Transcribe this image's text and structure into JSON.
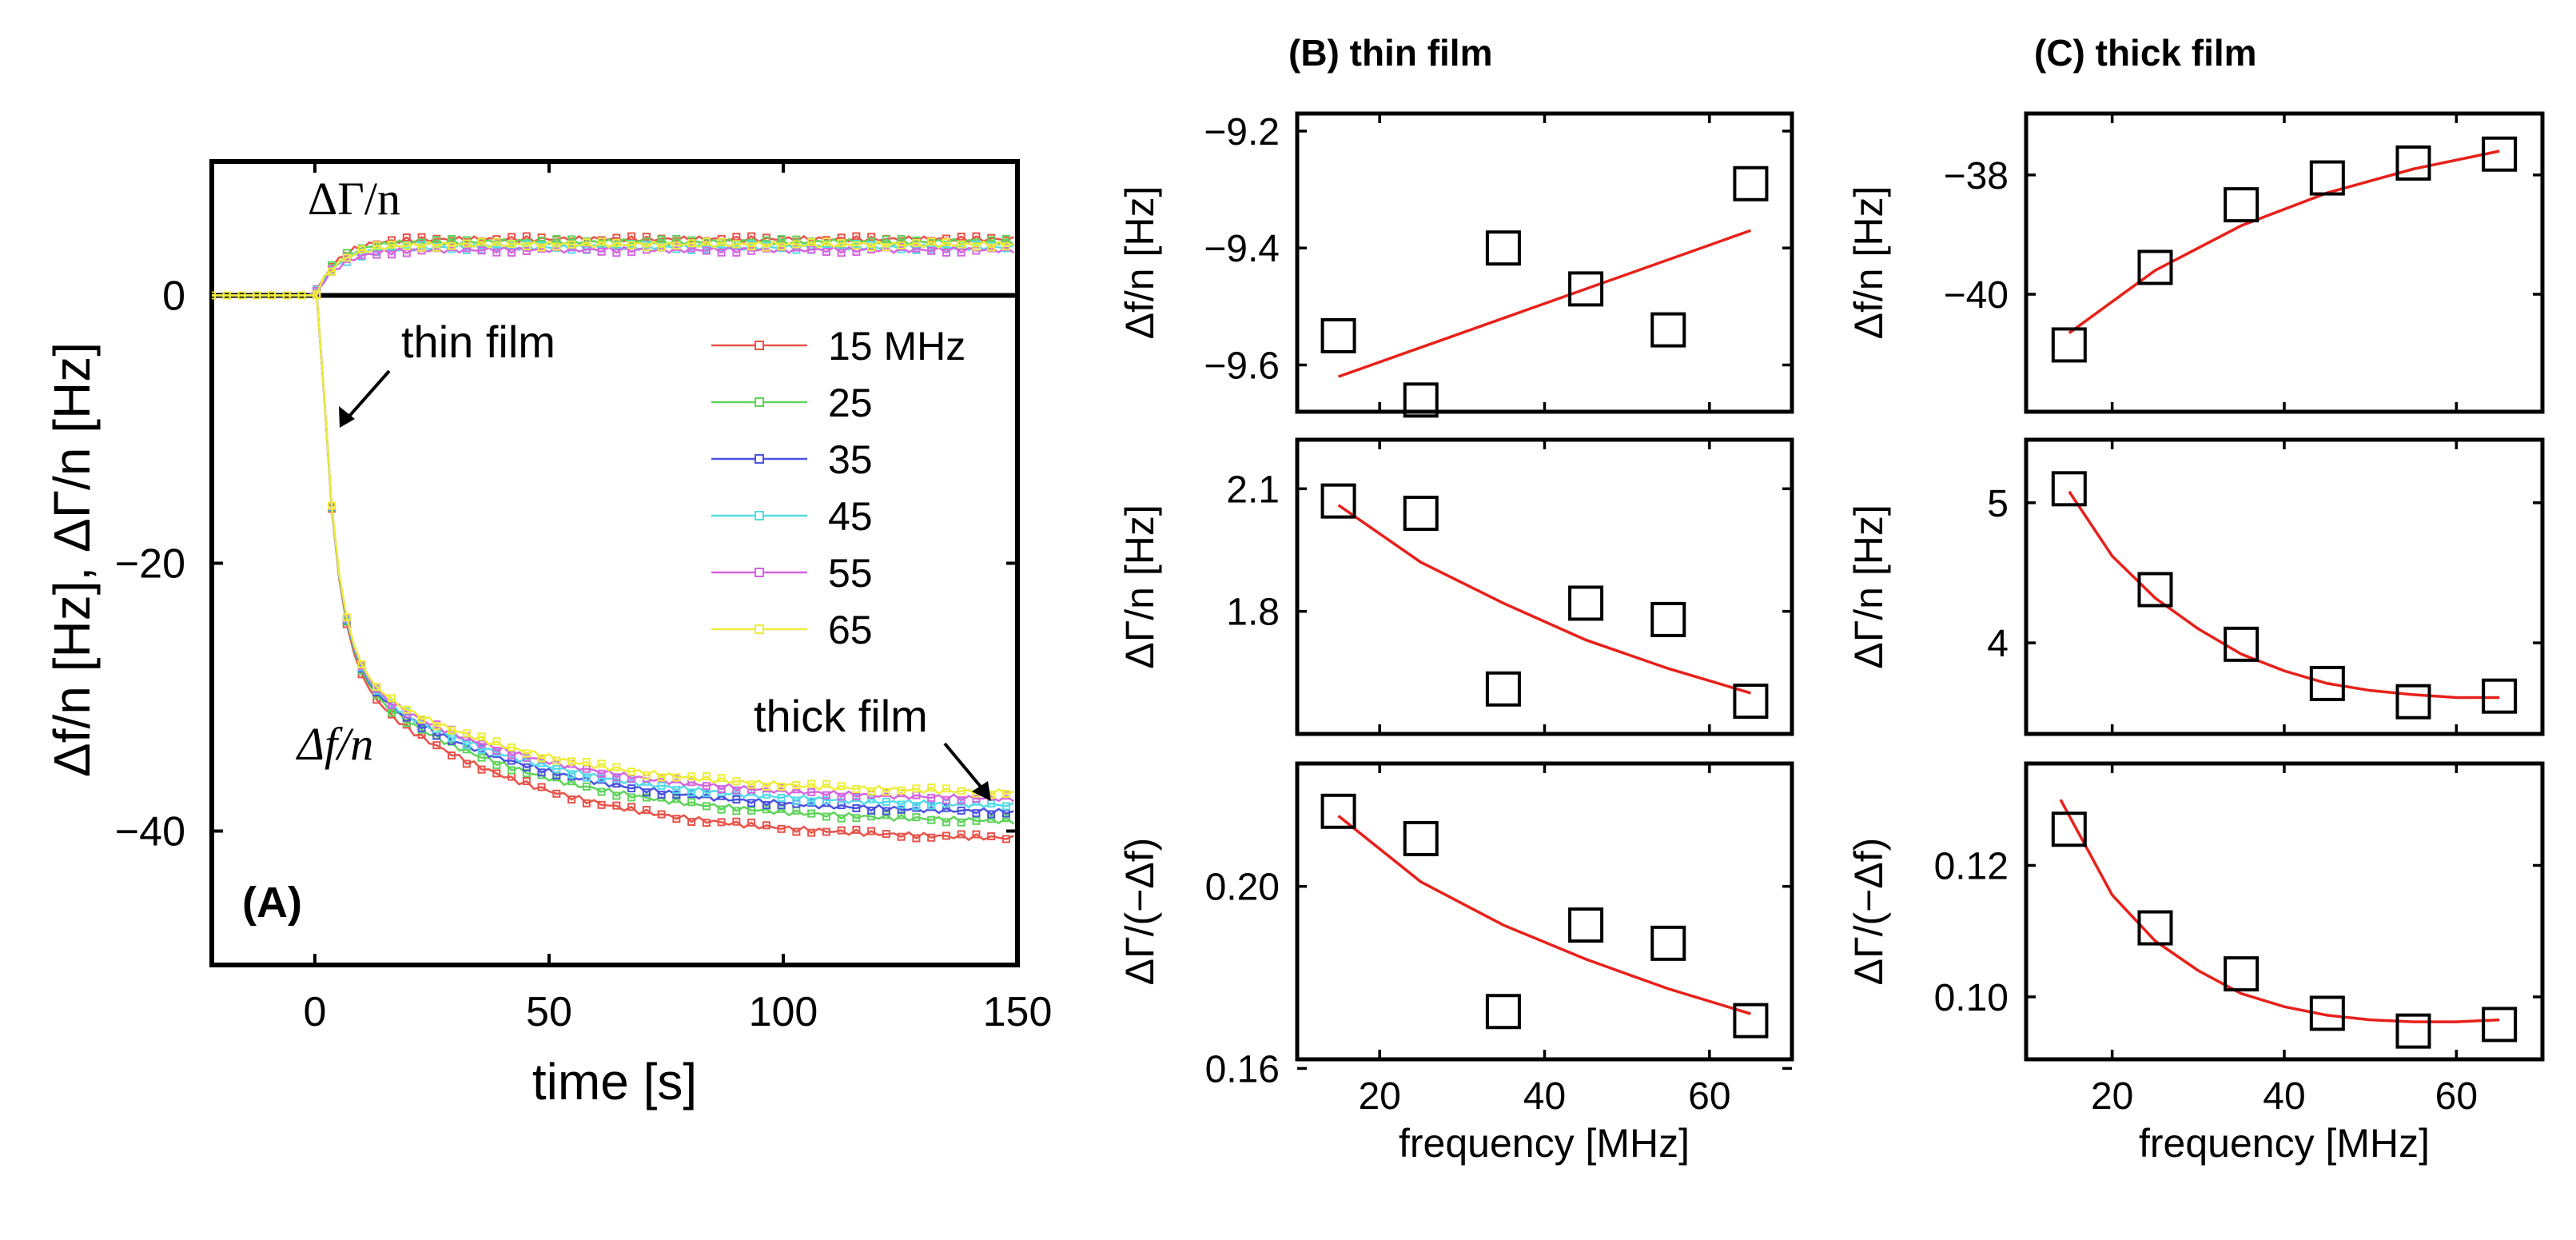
{
  "chart_data": [
    {
      "id": "A",
      "type": "line",
      "panel_label": "(A)",
      "xlabel": "time [s]",
      "ylabel": "Δf/n [Hz], ΔΓ/n [Hz]",
      "xlim": [
        -22,
        150
      ],
      "ylim": [
        -50,
        10
      ],
      "xticks": [
        0,
        50,
        100,
        150
      ],
      "yticks": [
        0,
        -20,
        -40
      ],
      "annotations": {
        "dgamma": "ΔΓ/n",
        "df": "Δf/n",
        "thin": "thin film",
        "thick": "thick film"
      },
      "legend": [
        "15 MHz",
        "25",
        "35",
        "45",
        "55",
        "65"
      ],
      "colors": [
        "#e8534a",
        "#5fd35a",
        "#4a52e0",
        "#54dbe8",
        "#d466e0",
        "#eded3a"
      ],
      "drop_start_s": 0,
      "dgamma_final": [
        4.2,
        4.0,
        3.8,
        3.6,
        3.4,
        3.8
      ],
      "df_final": [
        -40.8,
        -39.5,
        -38.8,
        -38.3,
        -37.8,
        -37.3
      ]
    },
    {
      "id": "B",
      "title": "(B) thin film",
      "type": "scatter",
      "xlabel": "frequency [MHz]",
      "x": [
        15,
        25,
        35,
        45,
        55,
        65
      ],
      "panels": [
        {
          "ylabel": "Δf/n [Hz]",
          "ylim": [
            -9.68,
            -9.17
          ],
          "yticks": [
            -9.2,
            -9.4,
            -9.6
          ],
          "ytick_labels": [
            "−9.2",
            "−9.4",
            "−9.6"
          ],
          "values": [
            -9.55,
            -9.66,
            -9.4,
            -9.47,
            -9.54,
            -9.29
          ],
          "fit": [
            [
              15,
              -9.62
            ],
            [
              65,
              -9.37
            ]
          ]
        },
        {
          "ylabel": "ΔΓ/n [Hz]",
          "ylim": [
            1.5,
            2.22
          ],
          "yticks": [
            2.1,
            1.8
          ],
          "ytick_labels": [
            "2.1",
            "1.8"
          ],
          "values": [
            2.07,
            2.04,
            1.61,
            1.82,
            1.78,
            1.58
          ],
          "fit": [
            [
              15,
              2.06
            ],
            [
              25,
              1.92
            ],
            [
              35,
              1.82
            ],
            [
              45,
              1.73
            ],
            [
              55,
              1.66
            ],
            [
              65,
              1.6
            ]
          ]
        },
        {
          "ylabel": "ΔΓ/(−Δf)",
          "ylim": [
            0.162,
            0.227
          ],
          "yticks": [
            0.2,
            0.16
          ],
          "ytick_labels": [
            "0.20",
            "0.16"
          ],
          "values": [
            0.2165,
            0.2105,
            0.1725,
            0.1915,
            0.1875,
            0.1705
          ],
          "fit": [
            [
              15,
              0.2155
            ],
            [
              25,
              0.201
            ],
            [
              35,
              0.1915
            ],
            [
              45,
              0.184
            ],
            [
              55,
              0.1775
            ],
            [
              65,
              0.172
            ]
          ]
        }
      ],
      "xlim": [
        10,
        70
      ],
      "xticks": [
        20,
        40,
        60
      ]
    },
    {
      "id": "C",
      "title": "(C) thick film",
      "type": "scatter",
      "xlabel": "frequency [MHz]",
      "x": [
        15,
        25,
        35,
        45,
        55,
        65
      ],
      "panels": [
        {
          "ylabel": "Δf/n [Hz]",
          "ylim": [
            -41.97,
            -36.97
          ],
          "yticks": [
            -38,
            -40
          ],
          "ytick_labels": [
            "−38",
            "−40"
          ],
          "values": [
            -40.85,
            -39.55,
            -38.5,
            -38.05,
            -37.8,
            -37.65
          ],
          "fit": [
            [
              15,
              -40.65
            ],
            [
              25,
              -39.6
            ],
            [
              35,
              -38.85
            ],
            [
              45,
              -38.3
            ],
            [
              55,
              -37.9
            ],
            [
              65,
              -37.6
            ]
          ]
        },
        {
          "ylabel": "ΔΓ/n [Hz]",
          "ylim": [
            3.35,
            5.45
          ],
          "yticks": [
            5,
            4
          ],
          "ytick_labels": [
            "5",
            "4"
          ],
          "values": [
            5.1,
            4.38,
            3.99,
            3.71,
            3.58,
            3.62
          ],
          "fit": [
            [
              15,
              5.08
            ],
            [
              20,
              4.62
            ],
            [
              25,
              4.32
            ],
            [
              30,
              4.1
            ],
            [
              35,
              3.92
            ],
            [
              40,
              3.8
            ],
            [
              45,
              3.71
            ],
            [
              50,
              3.66
            ],
            [
              55,
              3.63
            ],
            [
              60,
              3.61
            ],
            [
              65,
              3.61
            ]
          ]
        },
        {
          "ylabel": "ΔΓ/(−Δf)",
          "ylim": [
            0.0905,
            0.1355
          ],
          "yticks": [
            0.12,
            0.1
          ],
          "ytick_labels": [
            "0.12",
            "0.10"
          ],
          "values": [
            0.1255,
            0.1105,
            0.1035,
            0.0975,
            0.0948,
            0.0958
          ],
          "fit": [
            [
              14,
              0.13
            ],
            [
              20,
              0.1155
            ],
            [
              25,
              0.1085
            ],
            [
              30,
              0.104
            ],
            [
              35,
              0.1005
            ],
            [
              40,
              0.0985
            ],
            [
              45,
              0.0972
            ],
            [
              50,
              0.0965
            ],
            [
              55,
              0.0962
            ],
            [
              60,
              0.0962
            ],
            [
              65,
              0.0965
            ]
          ]
        }
      ],
      "xlim": [
        10,
        70
      ],
      "xticks": [
        20,
        40,
        60
      ]
    }
  ]
}
